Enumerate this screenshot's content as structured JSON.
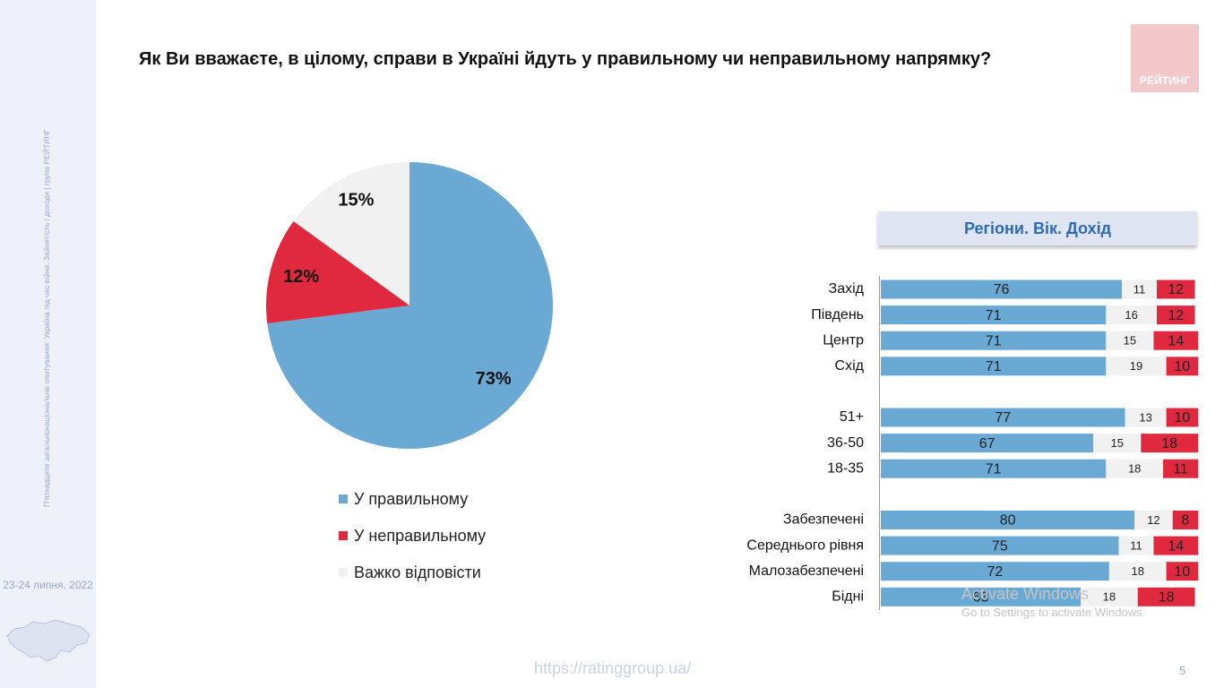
{
  "title": "Як Ви вважаєте, в цілому, справи в Україні йдуть у правильному чи неправильному напрямку?",
  "logo_text": "РЕЙТИНГ",
  "sidebar": {
    "vertical_text": "П'ятнадцяте загальнонаціональне опитування: Україна під час війни. Зайнятість і доходи | група РЕЙТИНГ",
    "date": "23-24 липня, 2022"
  },
  "url": "https://ratinggroup.ua/",
  "page_number": "5",
  "windows_watermark": {
    "line1": "Activate Windows",
    "line2": "Go to Settings to activate Windows."
  },
  "colors": {
    "right": "#6aa9d3",
    "wrong": "#e0283f",
    "hard": "#f1f1f1"
  },
  "chart_data": [
    {
      "type": "pie",
      "slices": [
        {
          "label": "У правильному",
          "value": 73,
          "display": "73%"
        },
        {
          "label": "У неправильному",
          "value": 12,
          "display": "12%"
        },
        {
          "label": "Важко відповісти",
          "value": 15,
          "display": "15%"
        }
      ]
    },
    {
      "type": "bar",
      "stacked": true,
      "orientation": "horizontal",
      "title": "Регіони. Вік. Дохід",
      "groups": [
        {
          "rows": [
            {
              "label": "Захід",
              "values": [
                76,
                11,
                12
              ]
            },
            {
              "label": "Південь",
              "values": [
                71,
                16,
                12
              ]
            },
            {
              "label": "Центр",
              "values": [
                71,
                15,
                14
              ]
            },
            {
              "label": "Схід",
              "values": [
                71,
                19,
                10
              ]
            }
          ]
        },
        {
          "rows": [
            {
              "label": "51+",
              "values": [
                77,
                13,
                10
              ]
            },
            {
              "label": "36-50",
              "values": [
                67,
                15,
                18
              ]
            },
            {
              "label": "18-35",
              "values": [
                71,
                18,
                11
              ]
            }
          ]
        },
        {
          "rows": [
            {
              "label": "Забезпечені",
              "values": [
                80,
                12,
                8
              ]
            },
            {
              "label": "Середнього рівня",
              "values": [
                75,
                11,
                14
              ]
            },
            {
              "label": "Малозабезпечені",
              "values": [
                72,
                18,
                10
              ]
            },
            {
              "label": "Бідні",
              "values": [
                63,
                18,
                18
              ]
            }
          ]
        }
      ]
    }
  ]
}
